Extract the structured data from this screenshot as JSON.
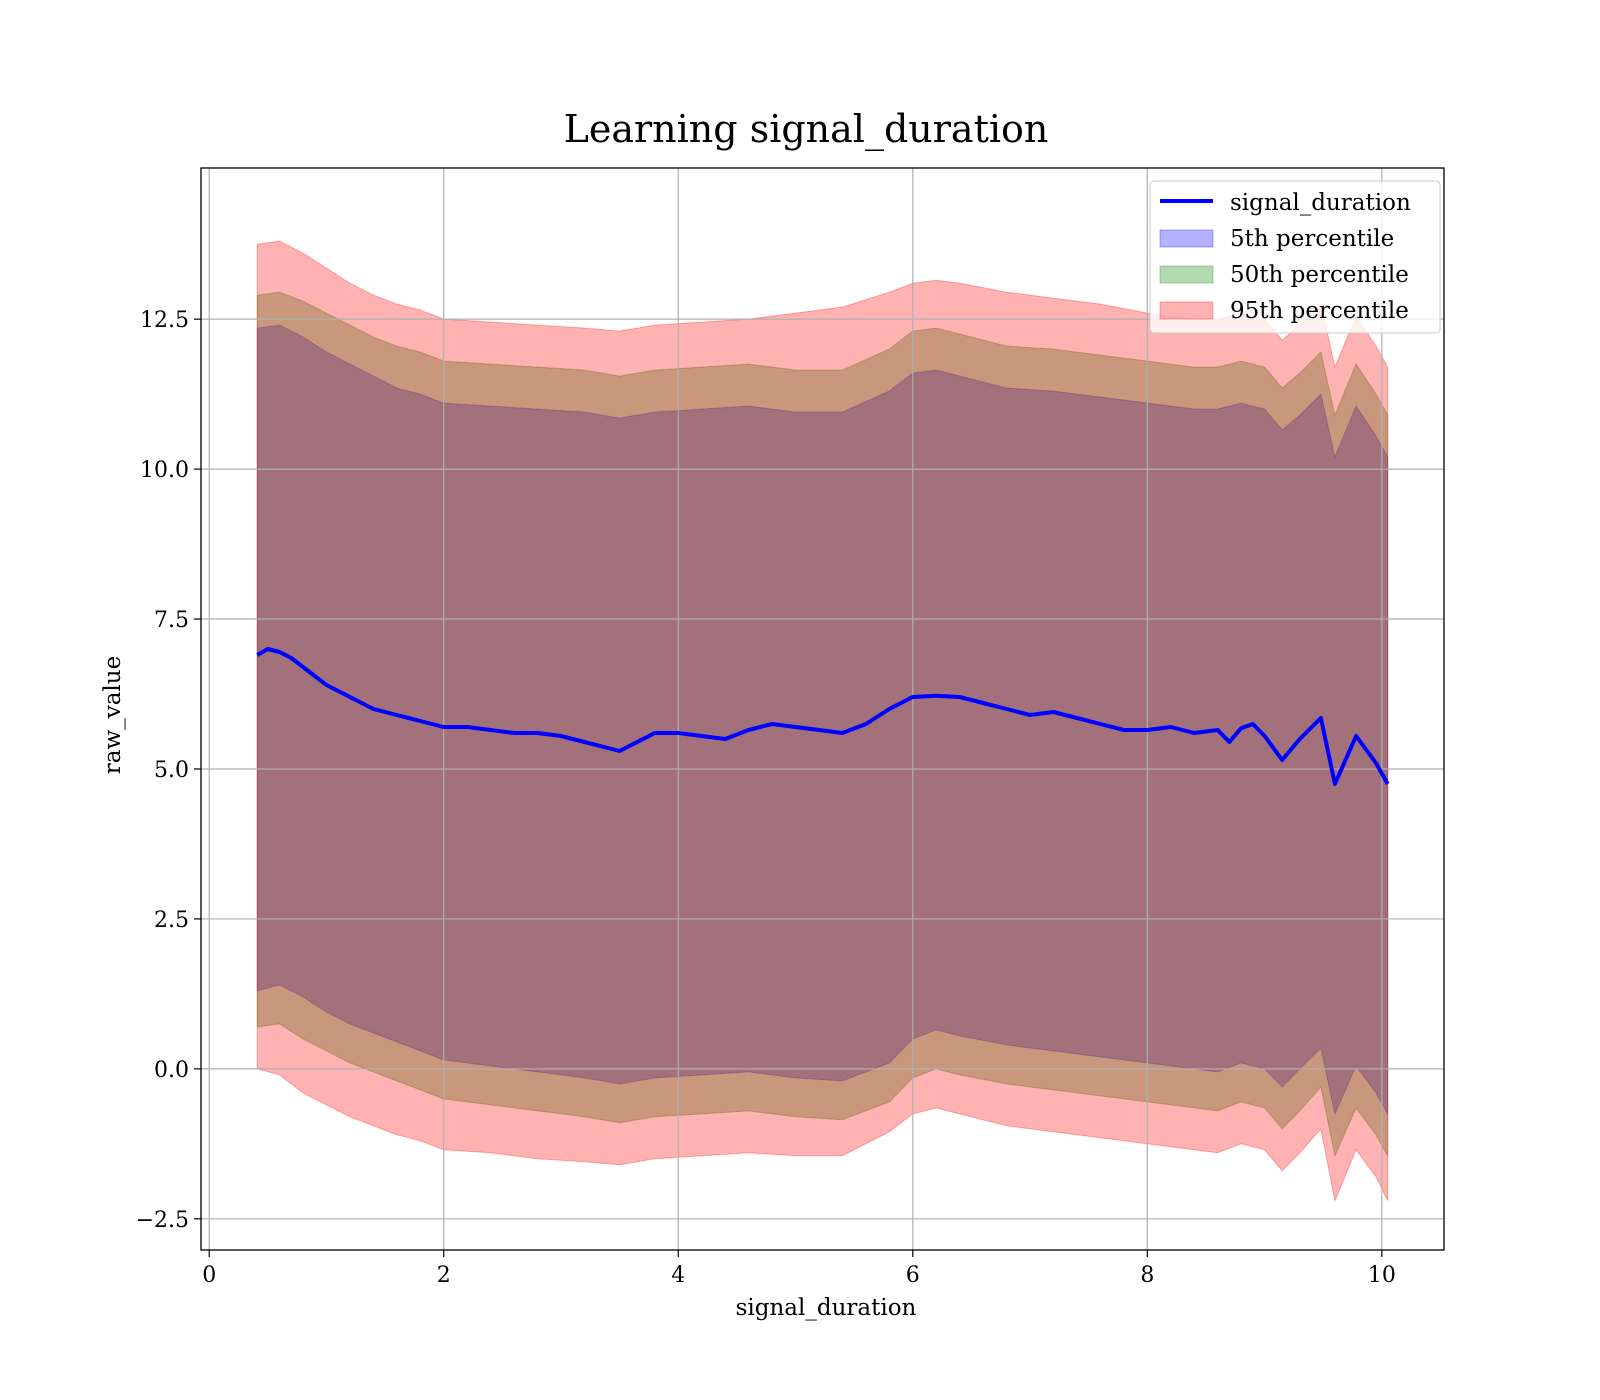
{
  "chart_data": {
    "type": "line",
    "title": "Learning signal_duration",
    "xlabel": "signal_duration",
    "ylabel": "raw_value",
    "xlim": [
      -0.07,
      10.53
    ],
    "ylim": [
      -3.02,
      15.02
    ],
    "xticks": [
      0,
      2,
      4,
      6,
      8,
      10
    ],
    "xtick_labels": [
      "0",
      "2",
      "4",
      "6",
      "8",
      "10"
    ],
    "yticks": [
      -2.5,
      0.0,
      2.5,
      5.0,
      7.5,
      10.0,
      12.5
    ],
    "ytick_labels": [
      "−2.5",
      "0.0",
      "2.5",
      "5.0",
      "7.5",
      "10.0",
      "12.5"
    ],
    "grid": true,
    "legend_position": "top-right",
    "line": {
      "name": "signal_duration",
      "color": "#0000ff",
      "x": [
        0.41,
        0.5,
        0.6,
        0.7,
        0.8,
        0.9,
        1.0,
        1.1,
        1.2,
        1.3,
        1.4,
        1.5,
        1.6,
        1.7,
        1.8,
        1.9,
        2.0,
        2.2,
        2.4,
        2.6,
        2.8,
        3.0,
        3.2,
        3.4,
        3.5,
        3.6,
        3.8,
        4.0,
        4.2,
        4.4,
        4.6,
        4.8,
        5.0,
        5.2,
        5.4,
        5.6,
        5.8,
        6.0,
        6.2,
        6.4,
        6.6,
        6.8,
        7.0,
        7.2,
        7.4,
        7.6,
        7.8,
        8.0,
        8.2,
        8.4,
        8.6,
        8.7,
        8.8,
        8.9,
        9.0,
        9.15,
        9.3,
        9.48,
        9.6,
        9.78,
        9.95,
        10.05
      ],
      "y": [
        6.9,
        7.0,
        6.95,
        6.85,
        6.7,
        6.55,
        6.4,
        6.3,
        6.2,
        6.1,
        6.0,
        5.95,
        5.9,
        5.85,
        5.8,
        5.75,
        5.7,
        5.7,
        5.65,
        5.6,
        5.6,
        5.55,
        5.45,
        5.35,
        5.3,
        5.4,
        5.6,
        5.6,
        5.55,
        5.5,
        5.65,
        5.75,
        5.7,
        5.65,
        5.6,
        5.75,
        6.0,
        6.2,
        6.22,
        6.2,
        6.1,
        6.0,
        5.9,
        5.95,
        5.85,
        5.75,
        5.65,
        5.65,
        5.7,
        5.6,
        5.65,
        5.45,
        5.68,
        5.75,
        5.55,
        5.15,
        5.5,
        5.85,
        4.75,
        5.55,
        5.1,
        4.75
      ]
    },
    "bands": [
      {
        "name": "5th percentile",
        "color": "#0000ff",
        "x": [
          0.41,
          0.6,
          0.8,
          1.0,
          1.2,
          1.4,
          1.6,
          1.8,
          2.0,
          2.4,
          2.8,
          3.2,
          3.5,
          3.8,
          4.2,
          4.6,
          5.0,
          5.4,
          5.8,
          6.0,
          6.2,
          6.4,
          6.8,
          7.2,
          7.6,
          8.0,
          8.4,
          8.6,
          8.8,
          9.0,
          9.15,
          9.3,
          9.48,
          9.6,
          9.78,
          9.95,
          10.05
        ],
        "lower": [
          1.3,
          1.4,
          1.2,
          0.95,
          0.75,
          0.6,
          0.45,
          0.3,
          0.15,
          0.05,
          -0.05,
          -0.15,
          -0.25,
          -0.15,
          -0.1,
          -0.05,
          -0.15,
          -0.2,
          0.1,
          0.5,
          0.65,
          0.55,
          0.4,
          0.3,
          0.2,
          0.1,
          0.0,
          -0.05,
          0.1,
          0.0,
          -0.3,
          0.0,
          0.35,
          -0.75,
          0.05,
          -0.4,
          -0.75
        ],
        "upper": [
          12.35,
          12.4,
          12.2,
          11.95,
          11.75,
          11.55,
          11.35,
          11.25,
          11.1,
          11.05,
          11.0,
          10.95,
          10.85,
          10.95,
          11.0,
          11.05,
          10.95,
          10.95,
          11.3,
          11.6,
          11.65,
          11.55,
          11.35,
          11.3,
          11.2,
          11.1,
          11.0,
          11.0,
          11.1,
          11.0,
          10.65,
          10.9,
          11.25,
          10.2,
          11.05,
          10.55,
          10.2
        ]
      },
      {
        "name": "50th percentile",
        "color": "#008000",
        "x": [
          0.41,
          0.6,
          0.8,
          1.0,
          1.2,
          1.4,
          1.6,
          1.8,
          2.0,
          2.4,
          2.8,
          3.2,
          3.5,
          3.8,
          4.2,
          4.6,
          5.0,
          5.4,
          5.8,
          6.0,
          6.2,
          6.4,
          6.8,
          7.2,
          7.6,
          8.0,
          8.4,
          8.6,
          8.8,
          9.0,
          9.15,
          9.3,
          9.48,
          9.6,
          9.78,
          9.95,
          10.05
        ],
        "lower": [
          0.7,
          0.75,
          0.5,
          0.3,
          0.1,
          -0.05,
          -0.2,
          -0.35,
          -0.5,
          -0.6,
          -0.7,
          -0.8,
          -0.9,
          -0.8,
          -0.75,
          -0.7,
          -0.8,
          -0.85,
          -0.55,
          -0.15,
          0.0,
          -0.1,
          -0.25,
          -0.35,
          -0.45,
          -0.55,
          -0.65,
          -0.7,
          -0.55,
          -0.65,
          -1.0,
          -0.7,
          -0.3,
          -1.45,
          -0.65,
          -1.1,
          -1.45
        ],
        "upper": [
          12.9,
          12.95,
          12.8,
          12.6,
          12.4,
          12.2,
          12.05,
          11.95,
          11.8,
          11.75,
          11.7,
          11.65,
          11.55,
          11.65,
          11.7,
          11.75,
          11.65,
          11.65,
          12.0,
          12.3,
          12.35,
          12.25,
          12.05,
          12.0,
          11.9,
          11.8,
          11.7,
          11.7,
          11.8,
          11.7,
          11.35,
          11.6,
          11.95,
          10.9,
          11.75,
          11.25,
          10.9
        ]
      },
      {
        "name": "95th percentile",
        "color": "#ff0000",
        "x": [
          0.41,
          0.6,
          0.8,
          1.0,
          1.2,
          1.4,
          1.6,
          1.8,
          2.0,
          2.4,
          2.8,
          3.2,
          3.5,
          3.8,
          4.2,
          4.6,
          5.0,
          5.4,
          5.8,
          6.0,
          6.2,
          6.4,
          6.8,
          7.2,
          7.6,
          8.0,
          8.4,
          8.6,
          8.8,
          9.0,
          9.15,
          9.3,
          9.48,
          9.6,
          9.78,
          9.95,
          10.05
        ],
        "lower": [
          0.0,
          -0.1,
          -0.4,
          -0.6,
          -0.8,
          -0.95,
          -1.1,
          -1.2,
          -1.35,
          -1.4,
          -1.5,
          -1.55,
          -1.6,
          -1.5,
          -1.45,
          -1.4,
          -1.45,
          -1.45,
          -1.05,
          -0.75,
          -0.65,
          -0.75,
          -0.95,
          -1.05,
          -1.15,
          -1.25,
          -1.35,
          -1.4,
          -1.25,
          -1.35,
          -1.7,
          -1.4,
          -1.0,
          -2.2,
          -1.35,
          -1.8,
          -2.2
        ],
        "upper": [
          13.75,
          13.8,
          13.6,
          13.35,
          13.1,
          12.9,
          12.75,
          12.65,
          12.5,
          12.45,
          12.4,
          12.35,
          12.3,
          12.4,
          12.45,
          12.5,
          12.6,
          12.7,
          12.95,
          13.1,
          13.15,
          13.1,
          12.95,
          12.85,
          12.75,
          12.6,
          12.5,
          12.5,
          12.6,
          12.5,
          12.15,
          12.4,
          12.75,
          11.7,
          12.55,
          12.05,
          11.7
        ]
      }
    ]
  }
}
